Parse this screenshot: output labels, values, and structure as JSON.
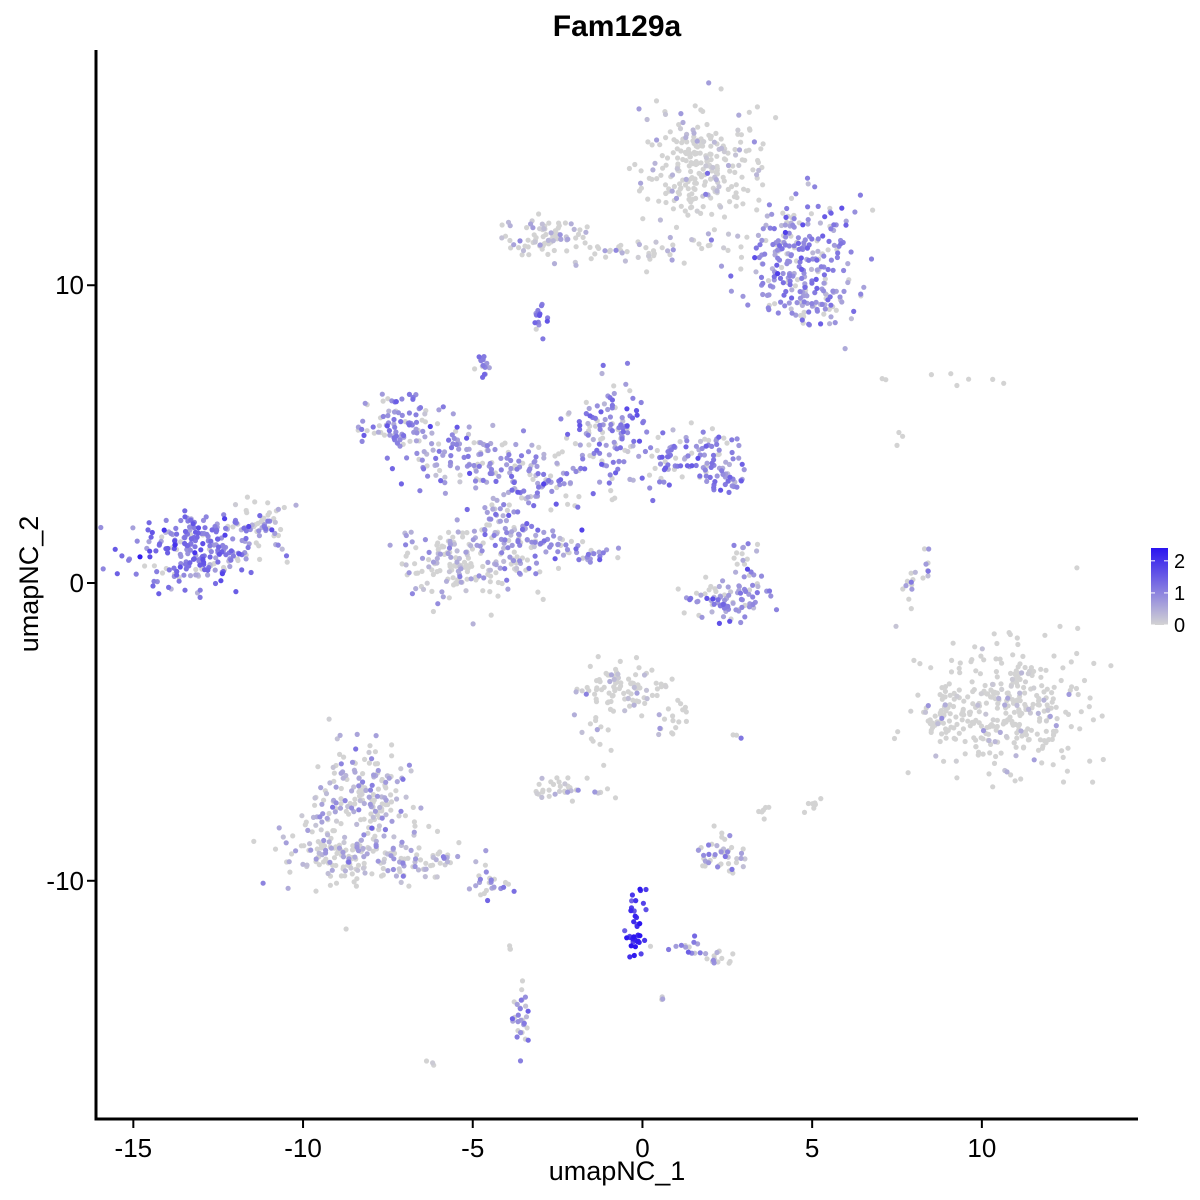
{
  "chart_data": {
    "type": "scatter",
    "title": "Fam129a",
    "xlabel": "umapNC_1",
    "ylabel": "umapNC_2",
    "xlim": [
      -16.1,
      14.6
    ],
    "ylim": [
      -18.0,
      17.9
    ],
    "x_ticks": [
      -15,
      -10,
      -5,
      0,
      5,
      10
    ],
    "x_tick_labels": [
      "-15",
      "-10",
      "-5",
      "0",
      "5",
      "10"
    ],
    "y_ticks": [
      -10,
      0,
      10
    ],
    "y_tick_labels": [
      "-10",
      "0",
      "10"
    ],
    "grid": false,
    "color_scale": {
      "low_color": "#d3d3d3",
      "high_color": "#2a14f0",
      "min": 0,
      "max": 2.4,
      "ticks": [
        0,
        1,
        2
      ],
      "tick_labels": [
        "0",
        "1",
        "2"
      ],
      "legend_placement": "right"
    },
    "clusters": [
      {
        "cx": 1.8,
        "cy": 13.9,
        "sx": 0.9,
        "sy": 0.9,
        "n": 260,
        "expr": 0.15
      },
      {
        "cx": 4.6,
        "cy": 11.2,
        "sx": 0.9,
        "sy": 0.9,
        "n": 190,
        "expr": 0.9
      },
      {
        "cx": 5.0,
        "cy": 9.5,
        "sx": 0.7,
        "sy": 0.55,
        "n": 90,
        "expr": 0.85
      },
      {
        "cx": -2.8,
        "cy": 11.6,
        "sx": 0.55,
        "sy": 0.35,
        "n": 70,
        "expr": 0.3
      },
      {
        "cx": -0.3,
        "cy": 11.2,
        "sx": 1.5,
        "sy": 0.25,
        "n": 55,
        "expr": 0.35
      },
      {
        "cx": -3.0,
        "cy": 8.8,
        "sx": 0.12,
        "sy": 0.3,
        "n": 14,
        "expr": 1.0
      },
      {
        "cx": -4.7,
        "cy": 7.2,
        "sx": 0.15,
        "sy": 0.25,
        "n": 14,
        "expr": 0.9
      },
      {
        "cx": -13.1,
        "cy": 1.1,
        "sx": 0.95,
        "sy": 0.6,
        "n": 240,
        "expr": 1.1
      },
      {
        "cx": -11.3,
        "cy": 1.8,
        "sx": 0.45,
        "sy": 0.5,
        "n": 45,
        "expr": 0.45
      },
      {
        "cx": -7.1,
        "cy": 5.3,
        "sx": 0.6,
        "sy": 0.55,
        "n": 90,
        "expr": 0.9
      },
      {
        "cx": -5.2,
        "cy": 4.3,
        "sx": 0.8,
        "sy": 0.55,
        "n": 90,
        "expr": 0.8
      },
      {
        "cx": -3.0,
        "cy": 3.5,
        "sx": 1.0,
        "sy": 0.65,
        "n": 120,
        "expr": 0.85
      },
      {
        "cx": -1.0,
        "cy": 5.2,
        "sx": 0.55,
        "sy": 0.75,
        "n": 110,
        "expr": 1.0
      },
      {
        "cx": 1.2,
        "cy": 4.3,
        "sx": 0.8,
        "sy": 0.45,
        "n": 90,
        "expr": 0.9
      },
      {
        "cx": 2.4,
        "cy": 3.8,
        "sx": 0.35,
        "sy": 0.45,
        "n": 45,
        "expr": 0.9
      },
      {
        "cx": -5.5,
        "cy": 0.6,
        "sx": 0.8,
        "sy": 0.65,
        "n": 140,
        "expr": 0.45
      },
      {
        "cx": -3.8,
        "cy": 1.3,
        "sx": 0.6,
        "sy": 0.8,
        "n": 110,
        "expr": 0.75
      },
      {
        "cx": -2.2,
        "cy": 1.2,
        "sx": 0.55,
        "sy": 0.3,
        "n": 25,
        "expr": 0.9
      },
      {
        "cx": -1.5,
        "cy": 0.9,
        "sx": 0.25,
        "sy": 0.15,
        "n": 15,
        "expr": 0.95
      },
      {
        "cx": 2.6,
        "cy": -0.7,
        "sx": 0.6,
        "sy": 0.3,
        "n": 60,
        "expr": 0.9
      },
      {
        "cx": 3.1,
        "cy": 0.5,
        "sx": 0.25,
        "sy": 0.45,
        "n": 30,
        "expr": 0.9
      },
      {
        "cx": 1.8,
        "cy": -0.2,
        "sx": 0.35,
        "sy": 0.2,
        "n": 12,
        "expr": 0.3
      },
      {
        "cx": 7.8,
        "cy": -0.1,
        "sx": 0.12,
        "sy": 0.35,
        "n": 12,
        "expr": 0.4
      },
      {
        "cx": 8.3,
        "cy": 0.7,
        "sx": 0.12,
        "sy": 0.3,
        "n": 8,
        "expr": 0.35
      },
      {
        "cx": 10.6,
        "cy": -4.2,
        "sx": 1.15,
        "sy": 1.1,
        "n": 330,
        "expr": 0.03
      },
      {
        "cx": 9.0,
        "cy": -4.5,
        "sx": 0.35,
        "sy": 0.4,
        "n": 35,
        "expr": 0.02
      },
      {
        "cx": -0.6,
        "cy": -3.5,
        "sx": 0.6,
        "sy": 0.45,
        "n": 90,
        "expr": 0.1
      },
      {
        "cx": 0.9,
        "cy": -4.5,
        "sx": 0.35,
        "sy": 0.45,
        "n": 18,
        "expr": 0.15
      },
      {
        "cx": -1.3,
        "cy": -5.0,
        "sx": 0.25,
        "sy": 0.5,
        "n": 12,
        "expr": 0.05
      },
      {
        "cx": -2.5,
        "cy": -6.9,
        "sx": 0.35,
        "sy": 0.25,
        "n": 30,
        "expr": 0.1
      },
      {
        "cx": -1.0,
        "cy": -7.1,
        "sx": 0.3,
        "sy": 0.1,
        "n": 5,
        "expr": 0.05
      },
      {
        "cx": 3.5,
        "cy": -7.6,
        "sx": 0.2,
        "sy": 0.15,
        "n": 6,
        "expr": 0.05
      },
      {
        "cx": 5.0,
        "cy": -7.4,
        "sx": 0.15,
        "sy": 0.2,
        "n": 8,
        "expr": 0.1
      },
      {
        "cx": 2.4,
        "cy": -9.1,
        "sx": 0.45,
        "sy": 0.35,
        "n": 45,
        "expr": 0.5
      },
      {
        "cx": 2.8,
        "cy": -5.1,
        "sx": 0.1,
        "sy": 0.05,
        "n": 3,
        "expr": 0.9
      },
      {
        "cx": -8.3,
        "cy": -7.3,
        "sx": 0.75,
        "sy": 0.9,
        "n": 200,
        "expr": 0.5
      },
      {
        "cx": -8.8,
        "cy": -9.2,
        "sx": 1.0,
        "sy": 0.5,
        "n": 130,
        "expr": 0.4
      },
      {
        "cx": -6.3,
        "cy": -9.3,
        "sx": 0.8,
        "sy": 0.35,
        "n": 55,
        "expr": 0.55
      },
      {
        "cx": -4.4,
        "cy": -10.2,
        "sx": 0.4,
        "sy": 0.2,
        "n": 22,
        "expr": 0.8
      },
      {
        "cx": -0.2,
        "cy": -11.4,
        "sx": 0.2,
        "sy": 0.8,
        "n": 30,
        "expr": 1.9
      },
      {
        "cx": -0.2,
        "cy": -12.0,
        "sx": 0.1,
        "sy": 0.1,
        "n": 14,
        "expr": 2.35
      },
      {
        "cx": 1.1,
        "cy": -12.2,
        "sx": 0.55,
        "sy": 0.15,
        "n": 14,
        "expr": 0.8
      },
      {
        "cx": 2.3,
        "cy": -12.6,
        "sx": 0.25,
        "sy": 0.12,
        "n": 14,
        "expr": 0.45
      },
      {
        "cx": -3.6,
        "cy": -14.7,
        "sx": 0.15,
        "sy": 0.55,
        "n": 30,
        "expr": 0.8
      },
      {
        "cx": -3.9,
        "cy": -12.2,
        "sx": 0.05,
        "sy": 0.1,
        "n": 3,
        "expr": 0.0
      },
      {
        "cx": -6.2,
        "cy": -16.1,
        "sx": 0.1,
        "sy": 0.05,
        "n": 3,
        "expr": 0.1
      },
      {
        "cx": 0.6,
        "cy": -14.0,
        "sx": 0.05,
        "sy": 0.05,
        "n": 3,
        "expr": 0.3
      },
      {
        "cx": 9.4,
        "cy": 6.8,
        "sx": 0.5,
        "sy": 0.15,
        "n": 6,
        "expr": 0.0
      },
      {
        "cx": 7.1,
        "cy": 6.9,
        "sx": 0.05,
        "sy": 0.05,
        "n": 2,
        "expr": 0.0
      },
      {
        "cx": 7.6,
        "cy": 4.8,
        "sx": 0.1,
        "sy": 0.15,
        "n": 3,
        "expr": 0.0
      }
    ]
  }
}
